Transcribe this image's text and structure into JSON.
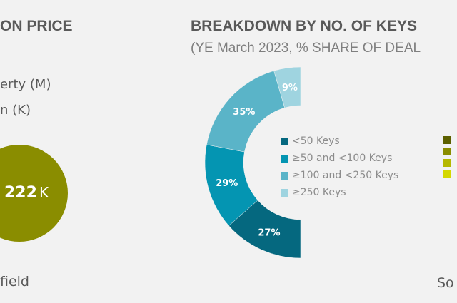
{
  "left_panel": {
    "title": "ON PRICE",
    "legend_1": "erty (M)",
    "legend_2": "n (K)",
    "circle_value": "222",
    "circle_unit": "K",
    "circle_color": "#8a8d00",
    "source": "field"
  },
  "chart_data": {
    "type": "pie",
    "style": "half-donut",
    "title": "BREAKDOWN BY NO. OF KEYS",
    "subtitle": "(YE March 2023, % SHARE OF DEAL",
    "categories": [
      "<50 Keys",
      "≥50 and <100 Keys",
      "≥100 and <250 Keys",
      "≥250 Keys"
    ],
    "values": [
      27,
      29,
      35,
      9
    ],
    "labels": [
      "27%",
      "29%",
      "35%",
      "9%"
    ],
    "colors": [
      "#05687f",
      "#0495b2",
      "#5ab4c8",
      "#9fd4e0"
    ],
    "legend": "center"
  },
  "right_panel": {
    "legend_colors": [
      "#5c6000",
      "#8a8d00",
      "#b5b800",
      "#d4d800"
    ],
    "source": "So"
  }
}
